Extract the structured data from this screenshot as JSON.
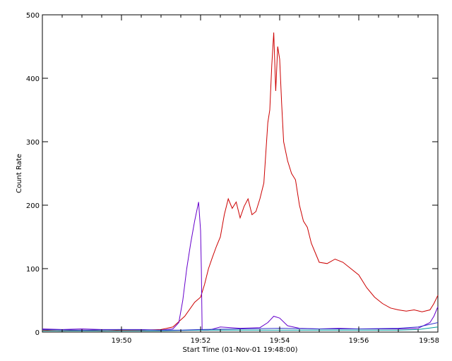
{
  "chart_data": {
    "type": "line",
    "title": "",
    "xlabel": "Start Time (01-Nov-01 19:48:00)",
    "ylabel": "Count Rate",
    "xlim_minutes": [
      0,
      10
    ],
    "ylim": [
      0,
      500
    ],
    "y_ticks": [
      0,
      100,
      200,
      300,
      400,
      500
    ],
    "x_ticks": [
      {
        "minutes": 2,
        "label": "19:50"
      },
      {
        "minutes": 4,
        "label": "19:52"
      },
      {
        "minutes": 6,
        "label": "19:54"
      },
      {
        "minutes": 8,
        "label": "19:56"
      },
      {
        "minutes": 10,
        "label": "19:58"
      }
    ],
    "x_units": "minutes since 19:48:00",
    "grid": false,
    "legend": "none",
    "series": [
      {
        "color": "#cc0000",
        "points": [
          [
            0.0,
            3
          ],
          [
            0.5,
            2
          ],
          [
            1.0,
            3
          ],
          [
            1.5,
            2
          ],
          [
            2.0,
            3
          ],
          [
            2.5,
            3
          ],
          [
            3.0,
            4
          ],
          [
            3.3,
            8
          ],
          [
            3.6,
            25
          ],
          [
            3.85,
            47
          ],
          [
            4.0,
            55
          ],
          [
            4.1,
            75
          ],
          [
            4.2,
            100
          ],
          [
            4.3,
            118
          ],
          [
            4.4,
            135
          ],
          [
            4.5,
            150
          ],
          [
            4.6,
            185
          ],
          [
            4.7,
            210
          ],
          [
            4.8,
            195
          ],
          [
            4.9,
            205
          ],
          [
            5.0,
            180
          ],
          [
            5.1,
            198
          ],
          [
            5.2,
            210
          ],
          [
            5.3,
            185
          ],
          [
            5.4,
            190
          ],
          [
            5.5,
            210
          ],
          [
            5.6,
            235
          ],
          [
            5.7,
            330
          ],
          [
            5.75,
            350
          ],
          [
            5.8,
            420
          ],
          [
            5.85,
            472
          ],
          [
            5.9,
            380
          ],
          [
            5.95,
            450
          ],
          [
            6.0,
            430
          ],
          [
            6.05,
            360
          ],
          [
            6.1,
            300
          ],
          [
            6.2,
            270
          ],
          [
            6.3,
            250
          ],
          [
            6.4,
            240
          ],
          [
            6.5,
            200
          ],
          [
            6.6,
            175
          ],
          [
            6.7,
            165
          ],
          [
            6.8,
            140
          ],
          [
            6.9,
            125
          ],
          [
            7.0,
            110
          ],
          [
            7.2,
            108
          ],
          [
            7.4,
            115
          ],
          [
            7.6,
            110
          ],
          [
            7.8,
            100
          ],
          [
            8.0,
            90
          ],
          [
            8.2,
            70
          ],
          [
            8.4,
            55
          ],
          [
            8.6,
            45
          ],
          [
            8.8,
            38
          ],
          [
            9.0,
            35
          ],
          [
            9.2,
            33
          ],
          [
            9.4,
            35
          ],
          [
            9.6,
            32
          ],
          [
            9.8,
            35
          ],
          [
            9.9,
            45
          ],
          [
            10.0,
            58
          ]
        ]
      },
      {
        "color": "#6600cc",
        "points": [
          [
            0.0,
            5
          ],
          [
            0.5,
            4
          ],
          [
            1.0,
            5
          ],
          [
            1.5,
            4
          ],
          [
            2.0,
            4
          ],
          [
            2.5,
            4
          ],
          [
            3.0,
            3
          ],
          [
            3.3,
            5
          ],
          [
            3.45,
            15
          ],
          [
            3.55,
            50
          ],
          [
            3.65,
            100
          ],
          [
            3.75,
            140
          ],
          [
            3.85,
            175
          ],
          [
            3.95,
            205
          ],
          [
            4.0,
            160
          ],
          [
            4.02,
            100
          ],
          [
            4.04,
            3
          ],
          [
            4.2,
            3
          ],
          [
            4.5,
            8
          ],
          [
            5.0,
            6
          ],
          [
            5.5,
            7
          ],
          [
            5.7,
            15
          ],
          [
            5.85,
            25
          ],
          [
            6.0,
            22
          ],
          [
            6.2,
            10
          ],
          [
            6.5,
            6
          ],
          [
            7.0,
            5
          ],
          [
            7.5,
            6
          ],
          [
            8.0,
            5
          ],
          [
            8.5,
            5
          ],
          [
            9.0,
            5
          ],
          [
            9.5,
            6
          ],
          [
            9.8,
            15
          ],
          [
            9.9,
            25
          ],
          [
            10.0,
            40
          ]
        ]
      },
      {
        "color": "#009999",
        "points": [
          [
            0.0,
            2
          ],
          [
            1.0,
            2
          ],
          [
            2.0,
            2
          ],
          [
            3.0,
            2
          ],
          [
            4.0,
            3
          ],
          [
            5.0,
            3
          ],
          [
            6.0,
            3
          ],
          [
            7.0,
            3
          ],
          [
            8.0,
            3
          ],
          [
            9.0,
            3
          ],
          [
            9.5,
            4
          ],
          [
            10.0,
            8
          ]
        ]
      },
      {
        "color": "#3333cc",
        "points": [
          [
            0.0,
            4
          ],
          [
            1.0,
            3
          ],
          [
            2.0,
            4
          ],
          [
            3.0,
            3
          ],
          [
            3.5,
            3
          ],
          [
            4.0,
            4
          ],
          [
            5.0,
            5
          ],
          [
            6.0,
            6
          ],
          [
            7.0,
            5
          ],
          [
            8.0,
            5
          ],
          [
            9.0,
            6
          ],
          [
            9.5,
            8
          ],
          [
            10.0,
            15
          ]
        ]
      }
    ]
  }
}
